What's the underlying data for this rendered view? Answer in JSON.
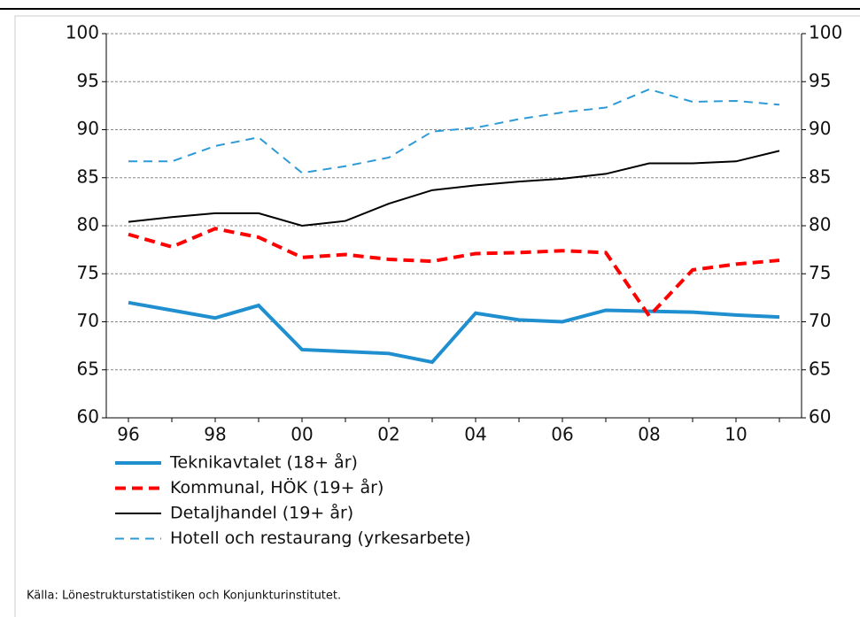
{
  "chart_data": {
    "type": "line",
    "categories": [
      "96",
      null,
      "98",
      null,
      "00",
      null,
      "02",
      null,
      "04",
      null,
      "06",
      null,
      "08",
      null,
      "10",
      null
    ],
    "ylim": [
      60,
      100
    ],
    "yticks": [
      60,
      65,
      70,
      75,
      80,
      85,
      90,
      95,
      100
    ],
    "y2lim": [
      60,
      100
    ],
    "y2ticks": [
      60,
      65,
      70,
      75,
      80,
      85,
      90,
      95,
      100
    ],
    "grid": true,
    "series": [
      {
        "name": "Teknikavtalet (18+ år)",
        "color": "#1f8fd0",
        "linestyle": "solid",
        "linewidth": 4,
        "values": [
          72.0,
          71.2,
          70.4,
          71.7,
          67.1,
          66.9,
          66.7,
          65.8,
          70.9,
          70.2,
          70.0,
          71.2,
          71.1,
          71.0,
          70.7,
          70.5
        ]
      },
      {
        "name": "Kommunal, HÖK (19+ år)",
        "color": "#ff0000",
        "linestyle": "dashed",
        "linewidth": 4,
        "values": [
          79.1,
          77.8,
          79.7,
          78.8,
          76.7,
          77.0,
          76.5,
          76.3,
          77.1,
          77.2,
          77.4,
          77.2,
          70.6,
          75.4,
          76.0,
          76.4
        ]
      },
      {
        "name": "Detaljhandel (19+ år)",
        "color": "#000000",
        "linestyle": "solid",
        "linewidth": 2,
        "values": [
          80.4,
          80.9,
          81.3,
          81.3,
          80.0,
          80.5,
          82.3,
          83.7,
          84.2,
          84.6,
          84.9,
          85.4,
          86.5,
          86.5,
          86.7,
          87.8
        ]
      },
      {
        "name": "Hotell och restaurang (yrkesarbete)",
        "color": "#2e9ad6",
        "linestyle": "dashed",
        "linewidth": 2,
        "values": [
          86.7,
          86.7,
          88.3,
          89.2,
          85.5,
          86.2,
          87.1,
          89.8,
          90.2,
          91.1,
          91.8,
          92.3,
          94.2,
          92.9,
          93.0,
          92.6
        ]
      }
    ],
    "source": "Källa: Lönestrukturstatistiken och Konjunkturinstitutet."
  }
}
